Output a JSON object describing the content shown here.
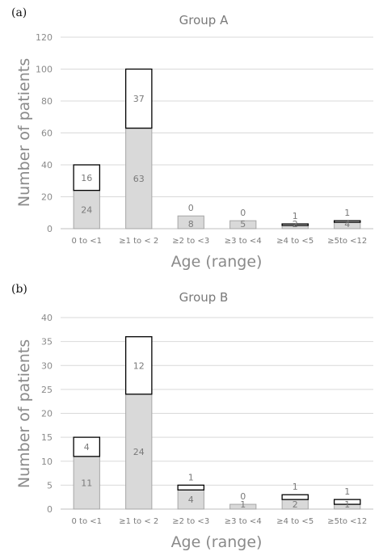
{
  "chart_data": [
    {
      "type": "bar",
      "stacked": true,
      "panel_label": "(a)",
      "title": "Group A",
      "xlabel": "Age (range)",
      "ylabel": "Number of patients",
      "ylim": [
        0,
        120
      ],
      "yticks": [
        "0",
        "20",
        "40",
        "60",
        "80",
        "100",
        "120"
      ],
      "grid": true,
      "categories": [
        "0 to <1",
        "≥1 to < 2",
        "≥2 to <3",
        "≥3 to <4",
        "≥4 to <5",
        "≥5to <12"
      ],
      "series": [
        {
          "values": [
            24,
            63,
            8,
            5,
            2,
            4
          ]
        },
        {
          "values": [
            16,
            37,
            0,
            0,
            1,
            1
          ]
        }
      ],
      "colors": {
        "lower_fill": "#d9d9d9",
        "upper_fill": "#ffffff",
        "upper_stroke": "#000000"
      }
    },
    {
      "type": "bar",
      "stacked": true,
      "panel_label": "(b)",
      "title": "Group B",
      "xlabel": "Age (range)",
      "ylabel": "Number of patients",
      "ylim": [
        0,
        40
      ],
      "yticks": [
        "0",
        "5",
        "10",
        "15",
        "20",
        "25",
        "30",
        "35",
        "40"
      ],
      "grid": true,
      "categories": [
        "0 to <1",
        "≥1 to < 2",
        "≥2 to <3",
        "≥3 to <4",
        "≥4 to <5",
        "≥5to <12"
      ],
      "series": [
        {
          "values": [
            11,
            24,
            4,
            1,
            2,
            1
          ]
        },
        {
          "values": [
            4,
            12,
            1,
            0,
            1,
            1
          ]
        }
      ],
      "colors": {
        "lower_fill": "#d9d9d9",
        "upper_fill": "#ffffff",
        "upper_stroke": "#000000"
      }
    }
  ]
}
